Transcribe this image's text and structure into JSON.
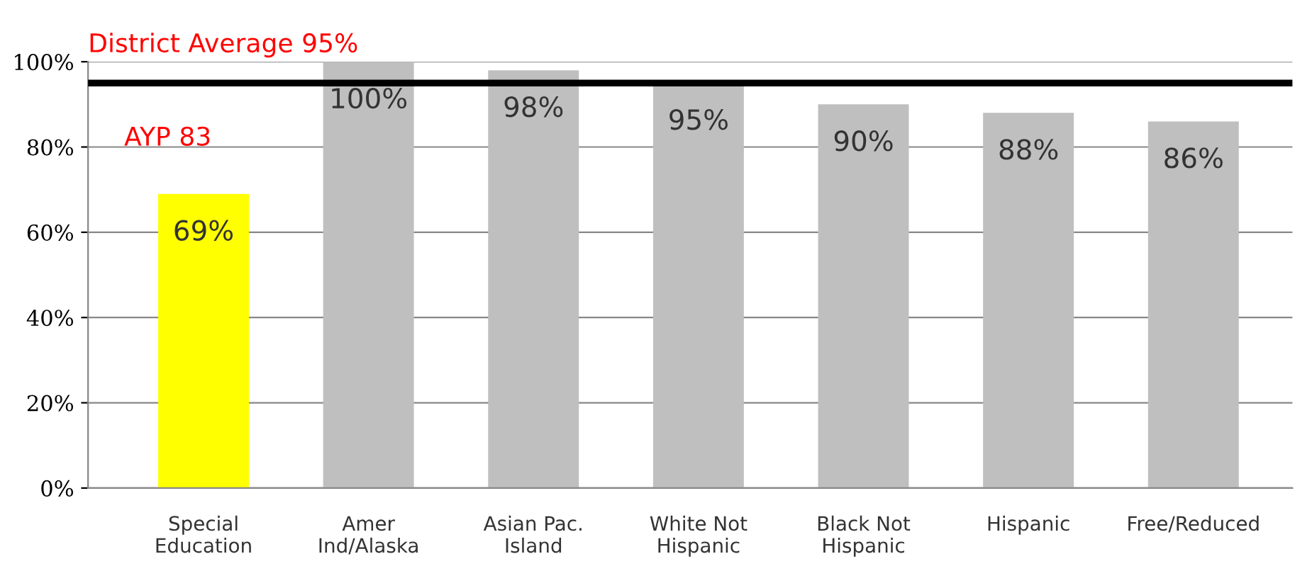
{
  "chart_data": {
    "type": "bar",
    "categories": [
      "Special\nEducation",
      "Amer\nInd/Alaska",
      "Asian Pac.\nIsland",
      "White Not\nHispanic",
      "Black Not\nHispanic",
      "Hispanic",
      "Free/Reduced"
    ],
    "values": [
      69,
      100,
      98,
      95,
      90,
      88,
      86
    ],
    "colors": [
      "#ffff00",
      "#bfbfbf",
      "#bfbfbf",
      "#bfbfbf",
      "#bfbfbf",
      "#bfbfbf",
      "#bfbfbf"
    ],
    "value_labels": [
      "69%",
      "100%",
      "98%",
      "95%",
      "90%",
      "88%",
      "86%"
    ],
    "ylim": [
      0,
      100
    ],
    "yticks": [
      {
        "value": 0,
        "label": "0%"
      },
      {
        "value": 20,
        "label": "20%"
      },
      {
        "value": 40,
        "label": "40%"
      },
      {
        "value": 60,
        "label": "60%"
      },
      {
        "value": 80,
        "label": "80%"
      },
      {
        "value": 100,
        "label": "100%"
      }
    ],
    "ref_lines": [
      {
        "axis": "y",
        "value": 95,
        "label": "District Average 95%",
        "color": "#000000",
        "line_style": "solid"
      }
    ],
    "annotations": [
      "AYP 83"
    ],
    "grid": "y",
    "legend": false
  }
}
